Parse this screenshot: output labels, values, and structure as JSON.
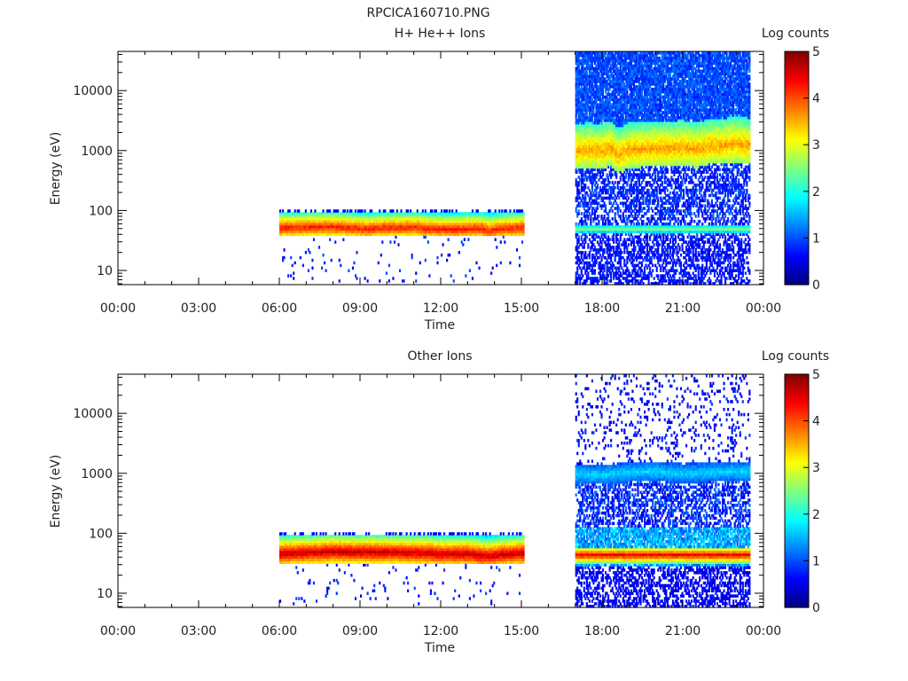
{
  "figure_title": "RPCICA160710.PNG",
  "chart_data": [
    {
      "type": "heatmap",
      "title": "H+ He++ Ions",
      "xlabel": "Time",
      "ylabel": "Energy (eV)",
      "x_tick_labels": [
        "00:00",
        "03:00",
        "06:00",
        "09:00",
        "12:00",
        "15:00",
        "18:00",
        "21:00",
        "00:00"
      ],
      "x_ticks_hours": [
        0,
        3,
        6,
        9,
        12,
        15,
        18,
        21,
        24
      ],
      "xlim_hours": [
        0,
        24
      ],
      "yscale": "log",
      "ylim": [
        5.8,
        45000
      ],
      "y_ticks": [
        10,
        100,
        1000,
        10000
      ],
      "y_tick_labels": [
        "10",
        "100",
        "1000",
        "10000"
      ],
      "colorbar": {
        "label": "Log counts",
        "range": [
          0,
          5
        ],
        "ticks": [
          "0",
          "1",
          "2",
          "3",
          "4",
          "5"
        ]
      },
      "segments": [
        {
          "time_range_hours": [
            6.0,
            15.1
          ],
          "band_center_eV": [
            [
              6.0,
              52
            ],
            [
              7.0,
              53
            ],
            [
              8.0,
              54
            ],
            [
              8.6,
              52
            ],
            [
              9.2,
              50
            ],
            [
              10.0,
              52
            ],
            [
              11.0,
              53
            ],
            [
              11.6,
              50
            ],
            [
              12.3,
              49
            ],
            [
              13.0,
              50
            ],
            [
              13.5,
              51
            ],
            [
              13.8,
              46
            ],
            [
              14.2,
              50
            ],
            [
              15.1,
              52
            ]
          ],
          "peak_log_counts": 4.3,
          "band_top_eV": 90,
          "band_bottom_eV": 40
        },
        {
          "time_range_hours": [
            17.0,
            23.5
          ],
          "band_center_eV": [
            [
              17.0,
              1000
            ],
            [
              17.5,
              1050
            ],
            [
              18.0,
              1000
            ],
            [
              18.3,
              1150
            ],
            [
              18.6,
              850
            ],
            [
              19.0,
              1050
            ],
            [
              20.0,
              1100
            ],
            [
              21.0,
              1150
            ],
            [
              21.5,
              1050
            ],
            [
              22.0,
              1200
            ],
            [
              23.0,
              1300
            ],
            [
              23.5,
              1250
            ]
          ],
          "peak_log_counts": 3.6,
          "low_band_eV": 50,
          "background": "noisy blue with white gaps"
        }
      ]
    },
    {
      "type": "heatmap",
      "title": "Other Ions",
      "xlabel": "Time",
      "ylabel": "Energy (eV)",
      "x_tick_labels": [
        "00:00",
        "03:00",
        "06:00",
        "09:00",
        "12:00",
        "15:00",
        "18:00",
        "21:00",
        "00:00"
      ],
      "x_ticks_hours": [
        0,
        3,
        6,
        9,
        12,
        15,
        18,
        21,
        24
      ],
      "xlim_hours": [
        0,
        24
      ],
      "yscale": "log",
      "ylim": [
        5.8,
        45000
      ],
      "y_ticks": [
        10,
        100,
        1000,
        10000
      ],
      "y_tick_labels": [
        "10",
        "100",
        "1000",
        "10000"
      ],
      "colorbar": {
        "label": "Log counts",
        "range": [
          0,
          5
        ],
        "ticks": [
          "0",
          "1",
          "2",
          "3",
          "4",
          "5"
        ]
      },
      "segments": [
        {
          "time_range_hours": [
            6.0,
            15.1
          ],
          "band_center_eV": [
            [
              6.0,
              46
            ],
            [
              7.0,
              48
            ],
            [
              8.0,
              50
            ],
            [
              9.0,
              49
            ],
            [
              10.0,
              49
            ],
            [
              11.0,
              48
            ],
            [
              12.0,
              46
            ],
            [
              13.0,
              46
            ],
            [
              13.8,
              42
            ],
            [
              14.3,
              45
            ],
            [
              15.1,
              47
            ]
          ],
          "peak_log_counts": 4.7,
          "band_top_eV": 92,
          "band_bottom_eV": 32
        },
        {
          "time_range_hours": [
            17.0,
            23.5
          ],
          "band_center_eV": [
            [
              17.0,
              1000
            ],
            [
              18.0,
              950
            ],
            [
              19.0,
              1050
            ],
            [
              20.0,
              1100
            ],
            [
              21.0,
              1000
            ],
            [
              22.0,
              1050
            ],
            [
              23.0,
              1100
            ],
            [
              23.5,
              1050
            ]
          ],
          "peak_log_counts": 1.7,
          "low_band_eV": 44,
          "low_band_peak_log_counts": 4.5,
          "background": "sparse noise"
        }
      ]
    }
  ]
}
